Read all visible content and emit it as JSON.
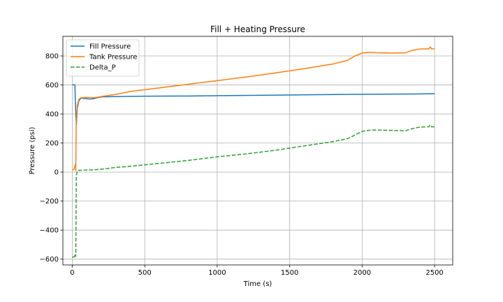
{
  "chart_data": {
    "type": "line",
    "title": "Fill + Heating Pressure",
    "xlabel": "Time (s)",
    "ylabel": "Pressure (psi)",
    "xlim": [
      -65,
      2625
    ],
    "ylim": [
      -640,
      935
    ],
    "grid": true,
    "legend_position": "upper-left",
    "xticks": [
      0,
      500,
      1000,
      1500,
      2000,
      2500
    ],
    "xtick_labels": [
      "0",
      "500",
      "1000",
      "1500",
      "2000",
      "2500"
    ],
    "yticks": [
      -600,
      -400,
      -200,
      0,
      200,
      400,
      600,
      800
    ],
    "ytick_labels": [
      "−600",
      "−400",
      "−200",
      "0",
      "200",
      "400",
      "600",
      "800"
    ],
    "series": [
      {
        "name": "Fill Pressure",
        "color": "#1f77b4",
        "dash": "solid",
        "points": [
          [
            0,
            600
          ],
          [
            10,
            602
          ],
          [
            18,
            600
          ],
          [
            20,
            520
          ],
          [
            24,
            420
          ],
          [
            28,
            325
          ],
          [
            35,
            440
          ],
          [
            45,
            490
          ],
          [
            60,
            510
          ],
          [
            80,
            508
          ],
          [
            100,
            505
          ],
          [
            120,
            503
          ],
          [
            150,
            506
          ],
          [
            170,
            512
          ],
          [
            200,
            518
          ],
          [
            300,
            520
          ],
          [
            400,
            522
          ],
          [
            600,
            523
          ],
          [
            800,
            524
          ],
          [
            1000,
            526
          ],
          [
            1200,
            528
          ],
          [
            1400,
            530
          ],
          [
            1600,
            532
          ],
          [
            1800,
            534
          ],
          [
            2000,
            536
          ],
          [
            2200,
            537
          ],
          [
            2400,
            538
          ],
          [
            2500,
            540
          ]
        ]
      },
      {
        "name": "Tank Pressure",
        "color": "#ff7f0e",
        "dash": "solid",
        "points": [
          [
            0,
            15
          ],
          [
            12,
            20
          ],
          [
            18,
            40
          ],
          [
            22,
            55
          ],
          [
            24,
            10
          ],
          [
            27,
            330
          ],
          [
            35,
            460
          ],
          [
            45,
            500
          ],
          [
            60,
            512
          ],
          [
            100,
            515
          ],
          [
            150,
            512
          ],
          [
            200,
            520
          ],
          [
            300,
            535
          ],
          [
            400,
            555
          ],
          [
            600,
            580
          ],
          [
            800,
            605
          ],
          [
            1000,
            630
          ],
          [
            1200,
            655
          ],
          [
            1400,
            683
          ],
          [
            1600,
            712
          ],
          [
            1800,
            745
          ],
          [
            1900,
            770
          ],
          [
            1950,
            800
          ],
          [
            2000,
            820
          ],
          [
            2050,
            825
          ],
          [
            2100,
            822
          ],
          [
            2200,
            820
          ],
          [
            2300,
            822
          ],
          [
            2350,
            840
          ],
          [
            2400,
            848
          ],
          [
            2460,
            848
          ],
          [
            2470,
            862
          ],
          [
            2480,
            848
          ],
          [
            2500,
            850
          ]
        ]
      },
      {
        "name": "Delta_P",
        "color": "#2ca02c",
        "dash": "dashed",
        "points": [
          [
            0,
            -585
          ],
          [
            15,
            -585
          ],
          [
            20,
            -565
          ],
          [
            24,
            -580
          ],
          [
            28,
            -20
          ],
          [
            35,
            10
          ],
          [
            50,
            12
          ],
          [
            100,
            14
          ],
          [
            150,
            15
          ],
          [
            200,
            20
          ],
          [
            250,
            25
          ],
          [
            300,
            32
          ],
          [
            400,
            40
          ],
          [
            600,
            60
          ],
          [
            800,
            80
          ],
          [
            1000,
            105
          ],
          [
            1200,
            125
          ],
          [
            1400,
            150
          ],
          [
            1600,
            180
          ],
          [
            1800,
            210
          ],
          [
            1900,
            230
          ],
          [
            1950,
            255
          ],
          [
            2000,
            280
          ],
          [
            2050,
            288
          ],
          [
            2100,
            290
          ],
          [
            2200,
            287
          ],
          [
            2300,
            285
          ],
          [
            2350,
            300
          ],
          [
            2400,
            310
          ],
          [
            2460,
            312
          ],
          [
            2470,
            325
          ],
          [
            2480,
            312
          ],
          [
            2500,
            312
          ]
        ]
      }
    ]
  }
}
